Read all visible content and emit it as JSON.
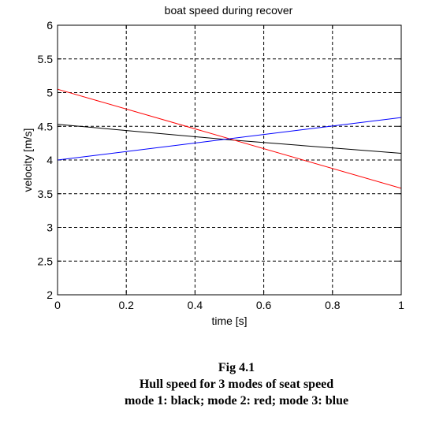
{
  "chart_data": {
    "type": "line",
    "title": "boat speed during recover",
    "xlabel": "time [s]",
    "ylabel": "velocity [m/s]",
    "xlim": [
      0,
      1
    ],
    "ylim": [
      2,
      6
    ],
    "x_ticks": [
      "0",
      "0.2",
      "0.4",
      "0.6",
      "0.8",
      "1"
    ],
    "y_ticks": [
      "2",
      "2.5",
      "3",
      "3.5",
      "4",
      "4.5",
      "5",
      "5.5",
      "6"
    ],
    "grid": true,
    "legend": "none",
    "series": [
      {
        "color": "#000000",
        "x": [
          0,
          0.5,
          1
        ],
        "y": [
          4.53,
          4.3,
          4.1
        ]
      },
      {
        "color": "#ff0000",
        "x": [
          0,
          1
        ],
        "y": [
          5.05,
          3.58
        ]
      },
      {
        "color": "#0000ff",
        "x": [
          0,
          1
        ],
        "y": [
          4.0,
          4.63
        ]
      }
    ]
  },
  "caption": {
    "line1": "Fig 4.1",
    "line2": "Hull speed for 3 modes of seat speed",
    "line3": "mode 1: black; mode 2: red; mode 3: blue"
  }
}
